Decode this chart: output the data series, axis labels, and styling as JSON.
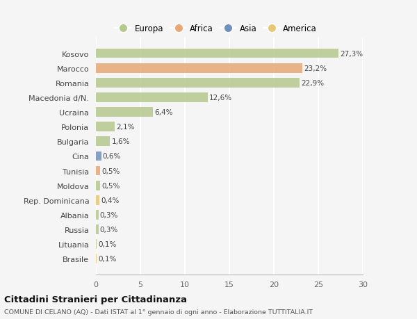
{
  "categories": [
    "Brasile",
    "Lituania",
    "Russia",
    "Albania",
    "Rep. Dominicana",
    "Moldova",
    "Tunisia",
    "Cina",
    "Bulgaria",
    "Polonia",
    "Ucraina",
    "Macedonia d/N.",
    "Romania",
    "Marocco",
    "Kosovo"
  ],
  "values": [
    0.1,
    0.1,
    0.3,
    0.3,
    0.4,
    0.5,
    0.5,
    0.6,
    1.6,
    2.1,
    6.4,
    12.6,
    22.9,
    23.2,
    27.3
  ],
  "labels": [
    "0,1%",
    "0,1%",
    "0,3%",
    "0,3%",
    "0,4%",
    "0,5%",
    "0,5%",
    "0,6%",
    "1,6%",
    "2,1%",
    "6,4%",
    "12,6%",
    "22,9%",
    "23,2%",
    "27,3%"
  ],
  "colors": [
    "#e8c878",
    "#b5c98e",
    "#b5c98e",
    "#b5c98e",
    "#e8c878",
    "#b5c98e",
    "#e8a878",
    "#7090c0",
    "#b5c98e",
    "#b5c98e",
    "#b5c98e",
    "#b5c98e",
    "#b5c98e",
    "#e8a878",
    "#b5c98e"
  ],
  "legend_labels": [
    "Europa",
    "Africa",
    "Asia",
    "America"
  ],
  "legend_colors": [
    "#b5c98e",
    "#e8a878",
    "#7090c0",
    "#e8c878"
  ],
  "title": "Cittadini Stranieri per Cittadinanza",
  "subtitle": "COMUNE DI CELANO (AQ) - Dati ISTAT al 1° gennaio di ogni anno - Elaborazione TUTTITALIA.IT",
  "xlim": [
    0,
    30
  ],
  "xticks": [
    0,
    5,
    10,
    15,
    20,
    25,
    30
  ],
  "background_color": "#f5f5f5",
  "grid_color": "#ffffff",
  "bar_height": 0.65
}
